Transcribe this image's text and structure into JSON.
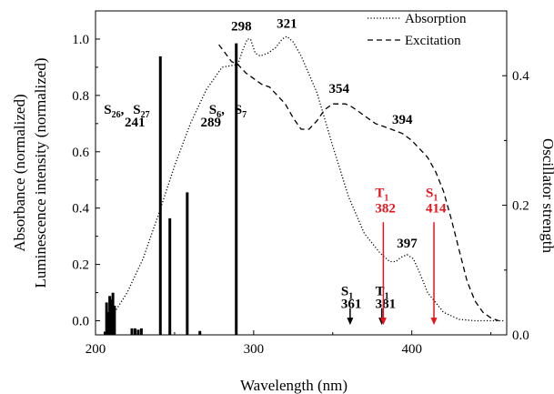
{
  "chart_data": {
    "type": "line",
    "title": "",
    "xlabel": "Wavelength (nm)",
    "ylabel_left_1": "Absorbance (normalized)",
    "ylabel_left_2": "Luminescence intensity (normalized)",
    "ylabel_right": "Oscillator strength",
    "xlim": [
      200,
      460
    ],
    "ylim_left": [
      -0.05,
      1.1
    ],
    "ylim_right": [
      0,
      0.5
    ],
    "x_ticks": [
      200,
      300,
      400
    ],
    "x_tick_labels": [
      "200",
      "300",
      "400"
    ],
    "y_left_ticks": [
      0.0,
      0.2,
      0.4,
      0.6,
      0.8,
      1.0
    ],
    "y_left_tick_labels": [
      "0.0",
      "0.2",
      "0.4",
      "0.6",
      "0.8",
      "1.0"
    ],
    "y_right_ticks": [
      0.0,
      0.2,
      0.4
    ],
    "y_right_tick_labels": [
      "0.0",
      "0.2",
      "0.4"
    ],
    "legend_position": "top-right",
    "series": [
      {
        "name": "Absorption",
        "style": "dotted",
        "x": [
          212,
          220,
          230,
          240,
          250,
          260,
          270,
          280,
          290,
          293,
          296,
          298,
          301,
          304,
          309,
          314,
          318,
          321,
          325,
          330,
          340,
          350,
          360,
          370,
          380,
          386,
          390,
          393,
          397,
          401,
          405,
          410,
          420,
          430,
          440,
          450,
          458
        ],
        "y": [
          0.03,
          0.1,
          0.22,
          0.38,
          0.55,
          0.7,
          0.82,
          0.9,
          0.91,
          0.96,
          1.0,
          1.0,
          0.95,
          0.94,
          0.95,
          0.97,
          1.0,
          1.01,
          0.99,
          0.94,
          0.81,
          0.62,
          0.44,
          0.31,
          0.24,
          0.21,
          0.21,
          0.225,
          0.235,
          0.22,
          0.17,
          0.1,
          0.03,
          0.005,
          0.0,
          0.0,
          0.0
        ]
      },
      {
        "name": "Excitation",
        "style": "dashed",
        "x": [
          278,
          282,
          286,
          290,
          295,
          300,
          305,
          310,
          315,
          320,
          325,
          330,
          335,
          340,
          345,
          350,
          354,
          358,
          362,
          367,
          372,
          377,
          382,
          387,
          394,
          400,
          410,
          415,
          420,
          425,
          430,
          435,
          440,
          445,
          450,
          455
        ],
        "y": [
          0.98,
          0.95,
          0.92,
          0.91,
          0.88,
          0.86,
          0.84,
          0.83,
          0.8,
          0.77,
          0.72,
          0.68,
          0.68,
          0.71,
          0.75,
          0.77,
          0.77,
          0.77,
          0.76,
          0.74,
          0.72,
          0.7,
          0.69,
          0.68,
          0.665,
          0.64,
          0.58,
          0.53,
          0.46,
          0.36,
          0.25,
          0.14,
          0.07,
          0.03,
          0.01,
          0.0
        ]
      }
    ],
    "oscillator_bars": {
      "x": [
        206,
        207,
        208,
        209,
        210,
        211,
        212,
        223,
        225,
        227,
        229,
        241,
        247,
        258,
        266,
        289
      ],
      "y": [
        0.005,
        0.05,
        0.035,
        0.06,
        0.055,
        0.065,
        0.045,
        0.01,
        0.01,
        0.008,
        0.01,
        0.43,
        0.18,
        0.22,
        0.006,
        0.45
      ]
    },
    "annotations": [
      {
        "text": "298",
        "x": 298,
        "y": 1.03
      },
      {
        "text": "321",
        "x": 321,
        "y": 1.04
      },
      {
        "text": "354",
        "x": 354,
        "y": 0.81
      },
      {
        "text": "394",
        "x": 394,
        "y": 0.7
      },
      {
        "text": "397",
        "x": 397,
        "y": 0.26
      },
      {
        "text": "241",
        "x": 241,
        "y": 0.69
      },
      {
        "text": "289",
        "x": 289,
        "y": 0.69
      }
    ],
    "state_labels": {
      "s26": {
        "main": "S",
        "sub": "26"
      },
      "s27": {
        "main": "S",
        "sub": "27"
      },
      "s6": {
        "main": "S",
        "sub": "6"
      },
      "s7": {
        "main": "S",
        "sub": "7"
      }
    },
    "arrows": [
      {
        "state": "S",
        "sub": "1",
        "value": "361",
        "x": 361,
        "color": "#000000"
      },
      {
        "state": "T",
        "sub": "1",
        "value": "381",
        "x": 381,
        "color": "#000000"
      },
      {
        "state": "T",
        "sub": "1",
        "value": "382",
        "x": 382,
        "color": "#e8131b"
      },
      {
        "state": "S",
        "sub": "1",
        "value": "414",
        "x": 414,
        "color": "#e8131b"
      }
    ]
  }
}
